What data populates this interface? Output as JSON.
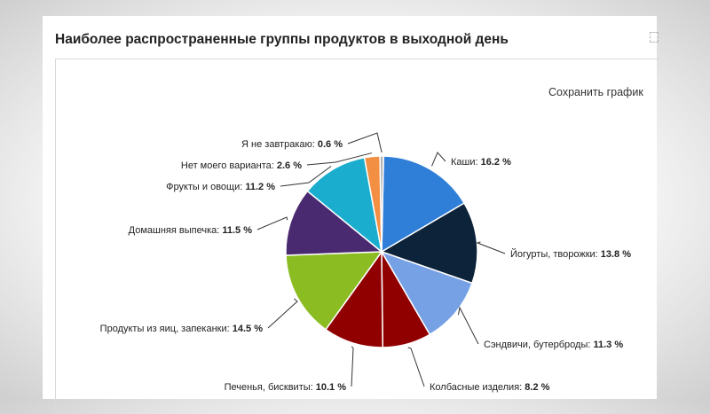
{
  "title": "Наиболее распространенные группы продуктов в выходной день",
  "save_label": "Сохранить график",
  "chart_data": {
    "type": "pie",
    "slices": [
      {
        "name": "Каши",
        "value": 16.2,
        "label": "16.2 %",
        "color": "#2f7ed8"
      },
      {
        "name": "Йогурты, творожки",
        "value": 13.8,
        "label": "13.8 %",
        "color": "#0d233a"
      },
      {
        "name": "Сэндвичи, бутерброды",
        "value": 11.3,
        "label": "11.3 %",
        "color": "#8bbc21"
      },
      {
        "name": "Колбасные изделия",
        "value": 8.2,
        "label": "8.2 %",
        "color": "#910000"
      },
      {
        "name": "Печенья, бисквиты",
        "value": 10.1,
        "label": "10.1 %",
        "color": "#1aadce"
      },
      {
        "name": "Продукты из яиц, запеканки",
        "value": 14.5,
        "label": "14.5 %",
        "color": "#492970"
      },
      {
        "name": "Домашняя выпечка",
        "value": 11.5,
        "label": "11.5 %",
        "color": "#f28f43"
      },
      {
        "name": "Фрукты и овощи",
        "value": 11.2,
        "label": "11.2 %",
        "color": "#77a1e5"
      },
      {
        "name": "Нет моего варианта",
        "value": 2.6,
        "label": "2.6 %",
        "color": "#c42525"
      },
      {
        "name": "Я не завтракаю",
        "value": 0.6,
        "label": "0.6 %",
        "color": "#a6c96a"
      }
    ]
  }
}
